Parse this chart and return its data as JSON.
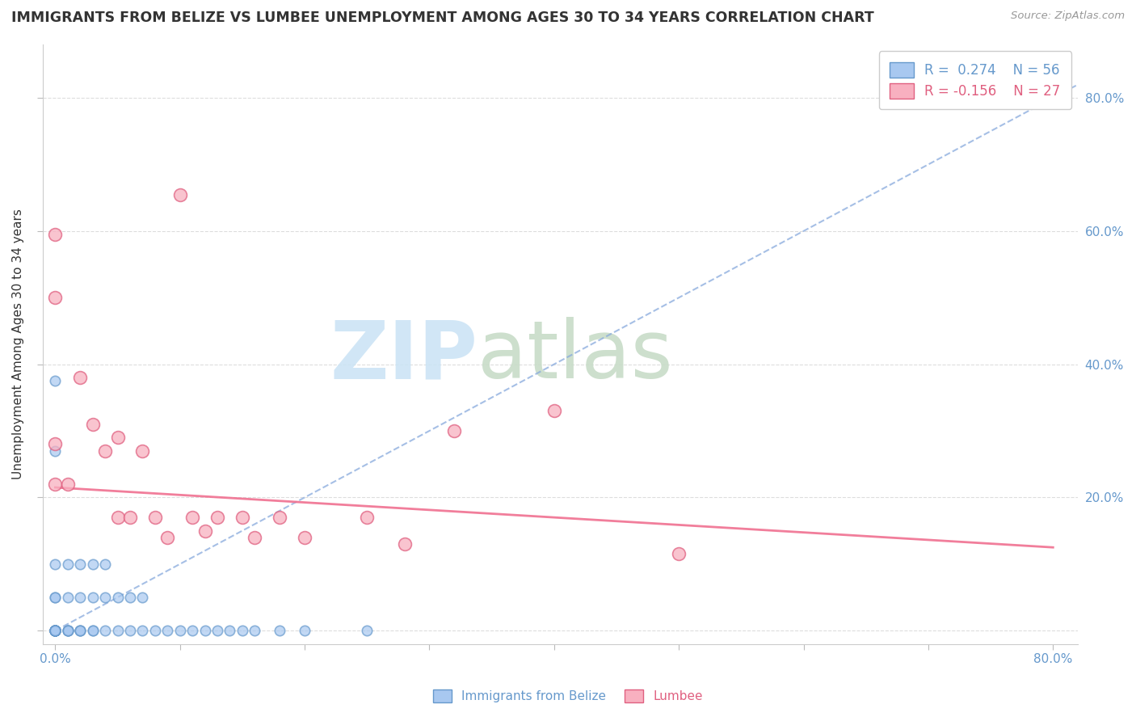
{
  "title": "IMMIGRANTS FROM BELIZE VS LUMBEE UNEMPLOYMENT AMONG AGES 30 TO 34 YEARS CORRELATION CHART",
  "source": "Source: ZipAtlas.com",
  "ylabel": "Unemployment Among Ages 30 to 34 years",
  "xlabel": "",
  "xlim": [
    -0.01,
    0.82
  ],
  "ylim": [
    -0.02,
    0.88
  ],
  "belize_color": "#a8c8f0",
  "belize_edge_color": "#6699cc",
  "lumbee_color": "#f8b0c0",
  "lumbee_edge_color": "#e06080",
  "belize_trend_color": "#88aadd",
  "lumbee_trend_color": "#f07090",
  "background_color": "#ffffff",
  "grid_color": "#dddddd",
  "legend_R_belize": "R =  0.274",
  "legend_N_belize": "N = 56",
  "legend_R_lumbee": "R = -0.156",
  "legend_N_lumbee": "N = 27",
  "tick_color": "#6699cc",
  "title_color": "#333333",
  "source_color": "#999999",
  "ylabel_color": "#333333",
  "belize_scatter_x": [
    0.0,
    0.0,
    0.0,
    0.0,
    0.0,
    0.0,
    0.0,
    0.0,
    0.0,
    0.0,
    0.0,
    0.0,
    0.0,
    0.0,
    0.0,
    0.0,
    0.0,
    0.0,
    0.0,
    0.0,
    0.01,
    0.01,
    0.01,
    0.01,
    0.01,
    0.01,
    0.02,
    0.02,
    0.02,
    0.02,
    0.02,
    0.03,
    0.03,
    0.03,
    0.03,
    0.04,
    0.04,
    0.04,
    0.05,
    0.05,
    0.06,
    0.06,
    0.07,
    0.07,
    0.08,
    0.09,
    0.1,
    0.11,
    0.12,
    0.13,
    0.14,
    0.15,
    0.16,
    0.18,
    0.2,
    0.25
  ],
  "belize_scatter_y": [
    0.0,
    0.0,
    0.0,
    0.0,
    0.0,
    0.0,
    0.0,
    0.0,
    0.0,
    0.0,
    0.0,
    0.0,
    0.0,
    0.0,
    0.0,
    0.375,
    0.27,
    0.1,
    0.05,
    0.05,
    0.0,
    0.0,
    0.0,
    0.0,
    0.05,
    0.1,
    0.0,
    0.0,
    0.0,
    0.05,
    0.1,
    0.0,
    0.0,
    0.05,
    0.1,
    0.0,
    0.05,
    0.1,
    0.0,
    0.05,
    0.0,
    0.05,
    0.0,
    0.05,
    0.0,
    0.0,
    0.0,
    0.0,
    0.0,
    0.0,
    0.0,
    0.0,
    0.0,
    0.0,
    0.0,
    0.0
  ],
  "lumbee_scatter_x": [
    0.0,
    0.0,
    0.0,
    0.0,
    0.01,
    0.02,
    0.03,
    0.04,
    0.05,
    0.05,
    0.06,
    0.07,
    0.08,
    0.09,
    0.1,
    0.11,
    0.12,
    0.13,
    0.15,
    0.16,
    0.18,
    0.2,
    0.25,
    0.28,
    0.32,
    0.4,
    0.5
  ],
  "lumbee_scatter_y": [
    0.595,
    0.5,
    0.28,
    0.22,
    0.22,
    0.38,
    0.31,
    0.27,
    0.29,
    0.17,
    0.17,
    0.27,
    0.17,
    0.14,
    0.655,
    0.17,
    0.15,
    0.17,
    0.17,
    0.14,
    0.17,
    0.14,
    0.17,
    0.13,
    0.3,
    0.33,
    0.115
  ],
  "belize_trend_x": [
    0.0,
    0.82
  ],
  "belize_trend_y": [
    0.0,
    0.82
  ],
  "lumbee_trend_x": [
    0.0,
    0.8
  ],
  "lumbee_trend_y": [
    0.215,
    0.125
  ]
}
